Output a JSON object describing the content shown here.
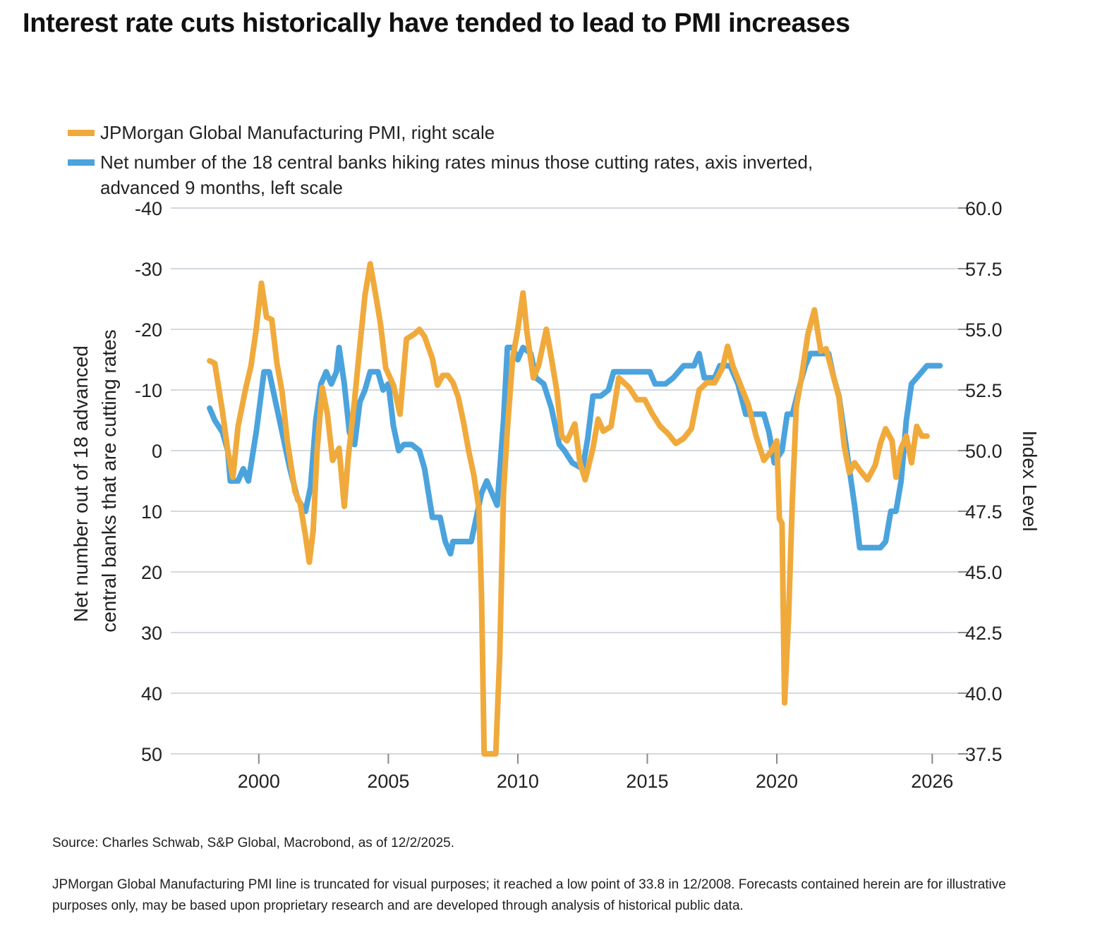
{
  "title": "Interest rate cuts historically have tended to lead to PMI increases",
  "colors": {
    "pmi": "#f0aa3c",
    "banks": "#4ba3dd",
    "grid": "#d4d9de"
  },
  "legend": {
    "pmi": "JPMorgan Global Manufacturing PMI, right scale",
    "banks": "Net number of the 18 central banks hiking rates minus those cutting rates, axis inverted, advanced 9 months, left scale"
  },
  "footer": {
    "source": "Source: Charles Schwab, S&P Global, Macrobond, as of 12/2/2025.",
    "note": "JPMorgan Global Manufacturing PMI line is truncated for visual purposes; it reached a low point of 33.8 in 12/2008. Forecasts contained herein are for illustrative purposes only, may be based upon proprietary research and are developed through analysis of historical public data."
  },
  "chart_data": {
    "type": "line",
    "title": "Interest rate cuts historically have tended to lead to PMI increases",
    "xlabel": "",
    "x_ticks": [
      "2000",
      "2005",
      "2010",
      "2015",
      "2020",
      "2026"
    ],
    "x_tick_values": [
      2000,
      2005,
      2010,
      2015,
      2020,
      2026
    ],
    "xlim": [
      1996.6,
      2027
    ],
    "left_axis": {
      "label": "Net number out of 18 advanced central banks that are cutting rates",
      "label_lines": [
        "Net number out of 18 advanced",
        "central banks that are cutting rates"
      ],
      "inverted": true,
      "ylim": [
        -40,
        50
      ],
      "ticks": [
        "-40",
        "-30",
        "-20",
        "-10",
        "0",
        "10",
        "20",
        "30",
        "40",
        "50"
      ],
      "tick_values": [
        -40,
        -30,
        -20,
        -10,
        0,
        10,
        20,
        30,
        40,
        50
      ]
    },
    "right_axis": {
      "label": "Index Level",
      "ylim": [
        37.5,
        60
      ],
      "ticks": [
        "60.0",
        "57.5",
        "55.0",
        "52.5",
        "50.0",
        "47.5",
        "45.0",
        "42.5",
        "40.0",
        "37.5"
      ],
      "tick_values": [
        60,
        57.5,
        55,
        52.5,
        50,
        47.5,
        45,
        42.5,
        40,
        37.5
      ]
    },
    "grid": true,
    "legend_position": "top-left",
    "series": [
      {
        "name": "JPMorgan Global Manufacturing PMI, right scale",
        "axis": "right",
        "points": [
          [
            1998.1,
            53.7
          ],
          [
            1998.3,
            53.6
          ],
          [
            1998.6,
            51.6
          ],
          [
            1998.8,
            50.0
          ],
          [
            1999.0,
            48.9
          ],
          [
            1999.2,
            51.0
          ],
          [
            1999.5,
            52.6
          ],
          [
            1999.7,
            53.5
          ],
          [
            1999.9,
            55.0
          ],
          [
            2000.1,
            56.9
          ],
          [
            2000.3,
            55.5
          ],
          [
            2000.5,
            55.4
          ],
          [
            2000.7,
            53.6
          ],
          [
            2000.9,
            52.4
          ],
          [
            2001.1,
            50.4
          ],
          [
            2001.4,
            48.3
          ],
          [
            2001.6,
            47.8
          ],
          [
            2001.8,
            46.5
          ],
          [
            2001.95,
            45.4
          ],
          [
            2002.1,
            46.7
          ],
          [
            2002.25,
            50.0
          ],
          [
            2002.45,
            52.6
          ],
          [
            2002.65,
            51.5
          ],
          [
            2002.85,
            49.6
          ],
          [
            2003.1,
            50.1
          ],
          [
            2003.3,
            47.7
          ],
          [
            2003.45,
            49.7
          ],
          [
            2003.7,
            52.1
          ],
          [
            2003.9,
            54.3
          ],
          [
            2004.1,
            56.4
          ],
          [
            2004.3,
            57.7
          ],
          [
            2004.5,
            56.5
          ],
          [
            2004.7,
            55.2
          ],
          [
            2004.9,
            53.4
          ],
          [
            2005.2,
            52.7
          ],
          [
            2005.45,
            51.5
          ],
          [
            2005.7,
            54.6
          ],
          [
            2006.0,
            54.8
          ],
          [
            2006.2,
            55.0
          ],
          [
            2006.4,
            54.7
          ],
          [
            2006.7,
            53.8
          ],
          [
            2006.9,
            52.7
          ],
          [
            2007.1,
            53.1
          ],
          [
            2007.3,
            53.1
          ],
          [
            2007.5,
            52.8
          ],
          [
            2007.7,
            52.2
          ],
          [
            2007.9,
            51.2
          ],
          [
            2008.1,
            50.0
          ],
          [
            2008.3,
            49.0
          ],
          [
            2008.5,
            47.6
          ],
          [
            2008.6,
            44.0
          ],
          [
            2008.7,
            37.5
          ],
          [
            2008.85,
            37.5
          ],
          [
            2009.0,
            37.5
          ],
          [
            2009.15,
            37.5
          ],
          [
            2009.3,
            41.5
          ],
          [
            2009.45,
            48.3
          ],
          [
            2009.6,
            50.9
          ],
          [
            2009.8,
            53.8
          ],
          [
            2010.0,
            55.0
          ],
          [
            2010.2,
            56.5
          ],
          [
            2010.35,
            54.9
          ],
          [
            2010.6,
            53.0
          ],
          [
            2010.8,
            53.5
          ],
          [
            2011.1,
            55.0
          ],
          [
            2011.3,
            53.8
          ],
          [
            2011.5,
            52.5
          ],
          [
            2011.7,
            50.6
          ],
          [
            2011.9,
            50.4
          ],
          [
            2012.2,
            51.1
          ],
          [
            2012.4,
            49.5
          ],
          [
            2012.6,
            48.8
          ],
          [
            2012.9,
            50.1
          ],
          [
            2013.1,
            51.3
          ],
          [
            2013.3,
            50.8
          ],
          [
            2013.6,
            51.0
          ],
          [
            2013.9,
            53.0
          ],
          [
            2014.1,
            52.8
          ],
          [
            2014.3,
            52.6
          ],
          [
            2014.6,
            52.1
          ],
          [
            2014.9,
            52.1
          ],
          [
            2015.2,
            51.5
          ],
          [
            2015.5,
            51.0
          ],
          [
            2015.8,
            50.7
          ],
          [
            2016.1,
            50.3
          ],
          [
            2016.4,
            50.5
          ],
          [
            2016.7,
            50.9
          ],
          [
            2017.0,
            52.5
          ],
          [
            2017.3,
            52.8
          ],
          [
            2017.6,
            52.8
          ],
          [
            2017.9,
            53.4
          ],
          [
            2018.1,
            54.3
          ],
          [
            2018.3,
            53.5
          ],
          [
            2018.6,
            52.7
          ],
          [
            2018.9,
            51.9
          ],
          [
            2019.2,
            50.6
          ],
          [
            2019.5,
            49.6
          ],
          [
            2019.8,
            50.0
          ],
          [
            2020.0,
            50.4
          ],
          [
            2020.1,
            47.2
          ],
          [
            2020.2,
            47.0
          ],
          [
            2020.3,
            39.6
          ],
          [
            2020.45,
            43.0
          ],
          [
            2020.6,
            48.0
          ],
          [
            2020.75,
            51.8
          ],
          [
            2020.95,
            53.0
          ],
          [
            2021.2,
            54.8
          ],
          [
            2021.45,
            55.8
          ],
          [
            2021.7,
            54.1
          ],
          [
            2021.9,
            54.2
          ],
          [
            2022.2,
            53.0
          ],
          [
            2022.4,
            52.2
          ],
          [
            2022.6,
            50.2
          ],
          [
            2022.8,
            49.1
          ],
          [
            2023.0,
            49.5
          ],
          [
            2023.2,
            49.2
          ],
          [
            2023.5,
            48.8
          ],
          [
            2023.8,
            49.4
          ],
          [
            2024.0,
            50.3
          ],
          [
            2024.2,
            50.9
          ],
          [
            2024.45,
            50.4
          ],
          [
            2024.6,
            48.9
          ],
          [
            2024.8,
            50.1
          ],
          [
            2025.0,
            50.6
          ],
          [
            2025.2,
            49.5
          ],
          [
            2025.4,
            51.0
          ],
          [
            2025.6,
            50.6
          ],
          [
            2025.8,
            50.6
          ]
        ]
      },
      {
        "name": "Net number of the 18 central banks hiking rates minus those cutting rates, axis inverted, advanced 9 months, left scale",
        "axis": "left",
        "points": [
          [
            1998.1,
            -7
          ],
          [
            1998.3,
            -5
          ],
          [
            1998.6,
            -3
          ],
          [
            1998.8,
            0
          ],
          [
            1998.9,
            5
          ],
          [
            1999.2,
            5
          ],
          [
            1999.4,
            3
          ],
          [
            1999.6,
            5
          ],
          [
            1999.9,
            -3
          ],
          [
            2000.2,
            -13
          ],
          [
            2000.4,
            -13
          ],
          [
            2000.6,
            -9
          ],
          [
            2000.9,
            -3
          ],
          [
            2001.2,
            3
          ],
          [
            2001.5,
            8
          ],
          [
            2001.8,
            10
          ],
          [
            2002.0,
            6
          ],
          [
            2002.2,
            -5
          ],
          [
            2002.4,
            -11
          ],
          [
            2002.6,
            -13
          ],
          [
            2002.8,
            -11
          ],
          [
            2003.0,
            -13
          ],
          [
            2003.1,
            -17
          ],
          [
            2003.3,
            -11
          ],
          [
            2003.5,
            -3
          ],
          [
            2003.7,
            -1
          ],
          [
            2003.9,
            -8
          ],
          [
            2004.1,
            -10
          ],
          [
            2004.3,
            -13
          ],
          [
            2004.6,
            -13
          ],
          [
            2004.8,
            -10
          ],
          [
            2005.0,
            -11
          ],
          [
            2005.2,
            -4
          ],
          [
            2005.4,
            0
          ],
          [
            2005.6,
            -1
          ],
          [
            2005.9,
            -1
          ],
          [
            2006.2,
            0
          ],
          [
            2006.4,
            3
          ],
          [
            2006.7,
            11
          ],
          [
            2007.0,
            11
          ],
          [
            2007.2,
            15
          ],
          [
            2007.4,
            17
          ],
          [
            2007.5,
            15
          ],
          [
            2008.0,
            15
          ],
          [
            2008.2,
            15
          ],
          [
            2008.4,
            11
          ],
          [
            2008.6,
            7
          ],
          [
            2008.8,
            5
          ],
          [
            2009.0,
            7
          ],
          [
            2009.2,
            9
          ],
          [
            2009.45,
            -5
          ],
          [
            2009.6,
            -17
          ],
          [
            2009.8,
            -17
          ],
          [
            2010.0,
            -15
          ],
          [
            2010.2,
            -17
          ],
          [
            2010.5,
            -16
          ],
          [
            2010.7,
            -12
          ],
          [
            2011.0,
            -11
          ],
          [
            2011.3,
            -7
          ],
          [
            2011.6,
            -1
          ],
          [
            2011.8,
            0
          ],
          [
            2012.1,
            2
          ],
          [
            2012.5,
            3
          ],
          [
            2012.7,
            -2
          ],
          [
            2012.9,
            -9
          ],
          [
            2013.2,
            -9
          ],
          [
            2013.5,
            -10
          ],
          [
            2013.7,
            -13
          ],
          [
            2014.1,
            -13
          ],
          [
            2014.4,
            -13
          ],
          [
            2014.7,
            -13
          ],
          [
            2015.1,
            -13
          ],
          [
            2015.3,
            -11
          ],
          [
            2015.7,
            -11
          ],
          [
            2016.0,
            -12
          ],
          [
            2016.4,
            -14
          ],
          [
            2016.8,
            -14
          ],
          [
            2017.0,
            -16
          ],
          [
            2017.2,
            -12
          ],
          [
            2017.6,
            -12
          ],
          [
            2017.8,
            -14
          ],
          [
            2018.2,
            -14
          ],
          [
            2018.5,
            -11
          ],
          [
            2018.8,
            -6
          ],
          [
            2019.2,
            -6
          ],
          [
            2019.5,
            -6
          ],
          [
            2019.7,
            -3
          ],
          [
            2019.9,
            2
          ],
          [
            2020.2,
            0
          ],
          [
            2020.4,
            -6
          ],
          [
            2020.6,
            -6
          ],
          [
            2020.9,
            -11
          ],
          [
            2021.1,
            -14
          ],
          [
            2021.3,
            -16
          ],
          [
            2021.7,
            -16
          ],
          [
            2022.0,
            -16
          ],
          [
            2022.2,
            -12
          ],
          [
            2022.4,
            -9
          ],
          [
            2022.6,
            -3
          ],
          [
            2022.8,
            3
          ],
          [
            2023.0,
            9
          ],
          [
            2023.2,
            16
          ],
          [
            2023.5,
            16
          ],
          [
            2024.0,
            16
          ],
          [
            2024.2,
            15
          ],
          [
            2024.4,
            10
          ],
          [
            2024.6,
            10
          ],
          [
            2024.8,
            5
          ],
          [
            2025.0,
            -5
          ],
          [
            2025.2,
            -11
          ],
          [
            2025.4,
            -12
          ],
          [
            2025.6,
            -13
          ],
          [
            2025.8,
            -14
          ],
          [
            2026.0,
            -14
          ],
          [
            2026.3,
            -14
          ]
        ]
      }
    ]
  }
}
